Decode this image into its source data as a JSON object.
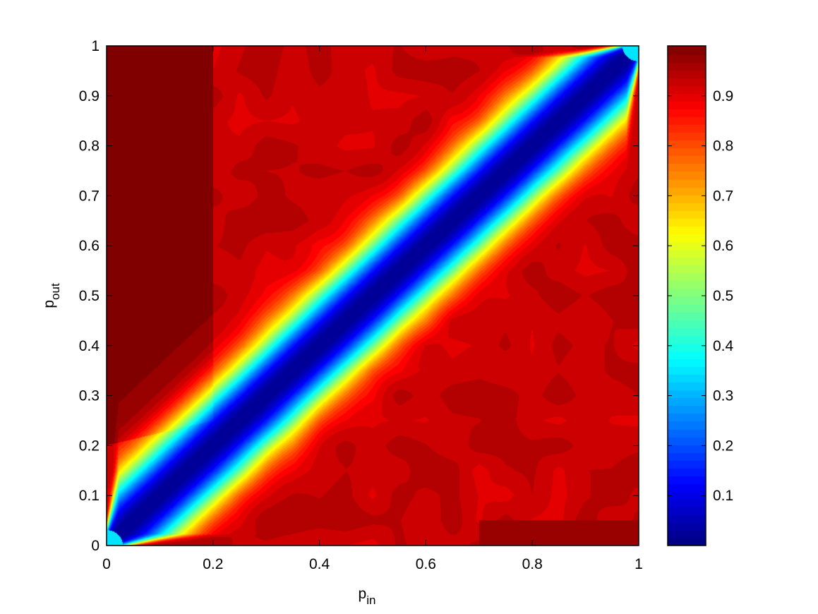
{
  "chart_data": {
    "type": "heatmap",
    "title": "",
    "xlabel": {
      "main": "p",
      "sub": "in"
    },
    "ylabel": {
      "main": "p",
      "sub": "out"
    },
    "xlim": [
      0,
      1
    ],
    "ylim": [
      0,
      1
    ],
    "x_ticks": [
      "0",
      "0.2",
      "0.4",
      "0.6",
      "0.8",
      "1"
    ],
    "y_ticks": [
      "0",
      "0.1",
      "0.2",
      "0.3",
      "0.4",
      "0.5",
      "0.6",
      "0.7",
      "0.8",
      "0.9",
      "1"
    ],
    "colormap": "jet",
    "color_range": [
      0.0,
      1.0
    ],
    "colorbar_ticks": [
      "0.1",
      "0.2",
      "0.3",
      "0.4",
      "0.5",
      "0.6",
      "0.7",
      "0.8",
      "0.9"
    ],
    "description_values": {
      "diagonal_band_center_value": 0.02,
      "background_value": 0.93,
      "top_left_region_value": 0.99,
      "bottom_right_corner_value": 0.98
    }
  }
}
